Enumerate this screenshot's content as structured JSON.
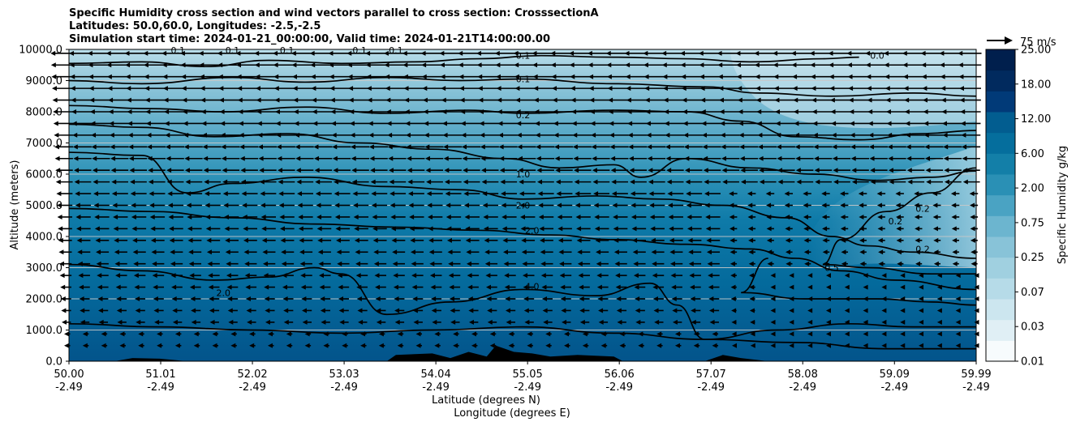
{
  "header": {
    "title_line1": "Specific Humidity cross section and wind vectors parallel to cross section: CrosssectionA",
    "title_line2": "Latitudes: 50.0,60.0, Longitudes: -2.5,-2.5",
    "title_line3": "Simulation start time: 2024-01-21_00:00:00, Valid time: 2024-01-21T14:00:00.00"
  },
  "chart_data": {
    "type": "heatmap",
    "subtype": "filled contour cross section with contour lines and wind vectors",
    "ylabel": "Altitude (meters)",
    "xlabel_line1": "Latitude (degrees N)",
    "xlabel_line2": "Longitude (degrees E)",
    "ylim": [
      0,
      10000
    ],
    "y_ticks": [
      "0.0",
      "1000.0",
      "2000.0",
      "3000.0",
      "4000.0",
      "5000.0",
      "6000.0",
      "7000.0",
      "8000.0",
      "9000.0",
      "10000.0"
    ],
    "x_ticks": [
      {
        "lat": "50.00",
        "lon": "-2.49"
      },
      {
        "lat": "51.01",
        "lon": "-2.49"
      },
      {
        "lat": "52.02",
        "lon": "-2.49"
      },
      {
        "lat": "53.03",
        "lon": "-2.49"
      },
      {
        "lat": "54.04",
        "lon": "-2.49"
      },
      {
        "lat": "55.05",
        "lon": "-2.49"
      },
      {
        "lat": "56.06",
        "lon": "-2.49"
      },
      {
        "lat": "57.07",
        "lon": "-2.49"
      },
      {
        "lat": "58.08",
        "lon": "-2.49"
      },
      {
        "lat": "59.09",
        "lon": "-2.49"
      },
      {
        "lat": "59.99",
        "lon": "-2.49"
      }
    ],
    "xlim": [
      50.0,
      59.99
    ],
    "grid_y": true,
    "colorbar": {
      "label": "Specific Humidity g/kg",
      "levels": [
        "0.01",
        "0.03",
        "0.07",
        "0.25",
        "0.75",
        "2.00",
        "6.00",
        "12.00",
        "18.00",
        "25.00"
      ],
      "level_values": [
        0.01,
        0.03,
        0.07,
        0.25,
        0.75,
        2.0,
        6.0,
        12.0,
        18.0,
        25.0
      ],
      "colors": [
        "#f7fbfd",
        "#e0eff5",
        "#cce6ef",
        "#b6dbe8",
        "#a0d0e0",
        "#88c3d8",
        "#6cb5cf",
        "#4aa3c3",
        "#2a90b5",
        "#137fa8",
        "#056e9d",
        "#025d90",
        "#013a78",
        "#012a5e",
        "#001f4d"
      ]
    },
    "quiver_key": {
      "value": 75,
      "label": "75 m/s"
    },
    "wind_direction": "toward lower latitude (southward along section)",
    "contour_labels": [
      {
        "text": "0.1",
        "lat": 51.2,
        "alt": 9980
      },
      {
        "text": "0.1",
        "lat": 51.8,
        "alt": 9980
      },
      {
        "text": "0.1",
        "lat": 52.4,
        "alt": 9980
      },
      {
        "text": "0.1",
        "lat": 53.2,
        "alt": 9980
      },
      {
        "text": "0.1",
        "lat": 53.6,
        "alt": 9980
      },
      {
        "text": "0.1",
        "lat": 55.0,
        "alt": 9800
      },
      {
        "text": "0.1",
        "lat": 55.0,
        "alt": 9050
      },
      {
        "text": "0.2",
        "lat": 55.0,
        "alt": 7900
      },
      {
        "text": "0.0",
        "lat": 58.9,
        "alt": 9800
      },
      {
        "text": "1.0",
        "lat": 55.0,
        "alt": 6000
      },
      {
        "text": "2.0",
        "lat": 55.0,
        "alt": 5000
      },
      {
        "text": "2.0",
        "lat": 55.1,
        "alt": 4200
      },
      {
        "text": "2.0",
        "lat": 51.7,
        "alt": 2200
      },
      {
        "text": "4.0",
        "lat": 55.1,
        "alt": 2400
      },
      {
        "text": "0.5",
        "lat": 58.4,
        "alt": 3000
      },
      {
        "text": "0.2",
        "lat": 59.1,
        "alt": 4500
      },
      {
        "text": "0.2",
        "lat": 59.4,
        "alt": 4900
      },
      {
        "text": "0.2",
        "lat": 59.4,
        "alt": 3600
      }
    ],
    "contour_lines": [
      {
        "level": "0.1",
        "points": [
          [
            50.0,
            9550
          ],
          [
            50.8,
            9600
          ],
          [
            51.5,
            9450
          ],
          [
            52.2,
            9650
          ],
          [
            53.0,
            9550
          ],
          [
            53.8,
            9600
          ],
          [
            54.5,
            9700
          ],
          [
            55.2,
            9800
          ],
          [
            56.0,
            9750
          ],
          [
            56.8,
            9700
          ],
          [
            57.5,
            9600
          ],
          [
            58.3,
            9700
          ],
          [
            58.7,
            9750
          ]
        ]
      },
      {
        "level": "0.1",
        "points": [
          [
            50.0,
            9000
          ],
          [
            50.8,
            8900
          ],
          [
            51.8,
            9100
          ],
          [
            52.6,
            8950
          ],
          [
            53.5,
            9100
          ],
          [
            54.3,
            9000
          ],
          [
            55.0,
            9050
          ],
          [
            56.0,
            8900
          ],
          [
            57.0,
            8800
          ],
          [
            57.6,
            8600
          ],
          [
            58.4,
            8500
          ],
          [
            59.3,
            8600
          ],
          [
            59.99,
            8500
          ]
        ]
      },
      {
        "level": "0.2",
        "points": [
          [
            50.0,
            8200
          ],
          [
            50.9,
            8100
          ],
          [
            51.7,
            8000
          ],
          [
            52.6,
            8150
          ],
          [
            53.5,
            7950
          ],
          [
            54.4,
            8050
          ],
          [
            55.0,
            7950
          ],
          [
            56.0,
            8050
          ],
          [
            56.8,
            8000
          ],
          [
            57.4,
            7700
          ],
          [
            58.0,
            7200
          ],
          [
            58.7,
            7100
          ],
          [
            59.4,
            7300
          ],
          [
            59.99,
            7400
          ]
        ]
      },
      {
        "level": "1.0",
        "points": [
          [
            50.0,
            7600
          ],
          [
            50.8,
            7500
          ],
          [
            51.6,
            7200
          ],
          [
            52.4,
            7300
          ],
          [
            53.2,
            7000
          ],
          [
            54.0,
            6800
          ],
          [
            54.8,
            6500
          ],
          [
            55.4,
            6200
          ],
          [
            56.0,
            6300
          ],
          [
            56.3,
            5900
          ],
          [
            56.8,
            6500
          ],
          [
            57.5,
            6200
          ],
          [
            58.2,
            6000
          ],
          [
            58.9,
            5800
          ],
          [
            59.5,
            5900
          ],
          [
            59.99,
            6100
          ]
        ]
      },
      {
        "level": "2.0",
        "points": [
          [
            50.0,
            6700
          ],
          [
            50.8,
            6600
          ],
          [
            51.3,
            5400
          ],
          [
            51.8,
            5700
          ],
          [
            52.6,
            5900
          ],
          [
            53.5,
            5600
          ],
          [
            54.3,
            5500
          ],
          [
            55.0,
            5200
          ],
          [
            55.8,
            5300
          ],
          [
            56.5,
            5200
          ],
          [
            57.2,
            5000
          ],
          [
            57.9,
            4600
          ],
          [
            58.4,
            4000
          ],
          [
            58.8,
            3700
          ],
          [
            59.3,
            3500
          ],
          [
            59.99,
            3300
          ]
        ]
      },
      {
        "level": "2.0",
        "points": [
          [
            50.0,
            4900
          ],
          [
            50.9,
            4800
          ],
          [
            51.8,
            4600
          ],
          [
            52.7,
            4400
          ],
          [
            53.6,
            4300
          ],
          [
            54.5,
            4200
          ],
          [
            55.3,
            4050
          ],
          [
            56.0,
            3900
          ],
          [
            56.8,
            3750
          ],
          [
            57.5,
            3600
          ],
          [
            58.0,
            3300
          ],
          [
            58.5,
            2900
          ],
          [
            59.1,
            2600
          ],
          [
            59.99,
            2300
          ]
        ]
      },
      {
        "level": "2.0",
        "points": [
          [
            50.0,
            3100
          ],
          [
            50.8,
            2900
          ],
          [
            51.6,
            2600
          ],
          [
            52.2,
            2700
          ],
          [
            52.7,
            3000
          ],
          [
            53.0,
            2800
          ],
          [
            53.5,
            1500
          ],
          [
            54.2,
            1900
          ],
          [
            55.0,
            2300
          ],
          [
            55.8,
            2100
          ],
          [
            56.4,
            2500
          ],
          [
            56.7,
            1800
          ],
          [
            57.0,
            700
          ],
          [
            57.8,
            1000
          ],
          [
            58.6,
            1200
          ],
          [
            59.3,
            1100
          ],
          [
            59.99,
            1100
          ]
        ]
      },
      {
        "level": "0.5",
        "points": [
          [
            57.7,
            3300
          ],
          [
            57.4,
            2200
          ],
          [
            58.1,
            2000
          ],
          [
            58.9,
            2000
          ],
          [
            59.5,
            1900
          ],
          [
            59.99,
            1800
          ]
        ]
      },
      {
        "level": "0.2",
        "points": [
          [
            59.99,
            6200
          ],
          [
            59.5,
            5400
          ],
          [
            59.0,
            4800
          ],
          [
            58.5,
            3900
          ],
          [
            58.3,
            3100
          ],
          [
            58.8,
            3000
          ],
          [
            59.5,
            2800
          ],
          [
            59.99,
            2800
          ]
        ]
      },
      {
        "level": "4.0",
        "points": [
          [
            50.0,
            1200
          ],
          [
            51.0,
            1100
          ],
          [
            52.0,
            1000
          ],
          [
            53.0,
            900
          ],
          [
            54.0,
            1000
          ],
          [
            55.0,
            1100
          ],
          [
            56.0,
            900
          ],
          [
            57.0,
            700
          ],
          [
            58.0,
            600
          ],
          [
            59.0,
            400
          ],
          [
            59.99,
            400
          ]
        ]
      }
    ],
    "terrain": [
      [
        50.0,
        0
      ],
      [
        50.5,
        0
      ],
      [
        50.7,
        100
      ],
      [
        51.0,
        80
      ],
      [
        51.3,
        0
      ],
      [
        53.5,
        0
      ],
      [
        53.6,
        200
      ],
      [
        54.0,
        250
      ],
      [
        54.2,
        100
      ],
      [
        54.4,
        300
      ],
      [
        54.6,
        150
      ],
      [
        54.7,
        500
      ],
      [
        54.9,
        300
      ],
      [
        55.1,
        250
      ],
      [
        55.3,
        150
      ],
      [
        55.6,
        200
      ],
      [
        56.0,
        150
      ],
      [
        56.1,
        0
      ],
      [
        57.0,
        0
      ],
      [
        57.2,
        200
      ],
      [
        57.4,
        100
      ],
      [
        57.7,
        0
      ],
      [
        59.99,
        0
      ]
    ]
  }
}
